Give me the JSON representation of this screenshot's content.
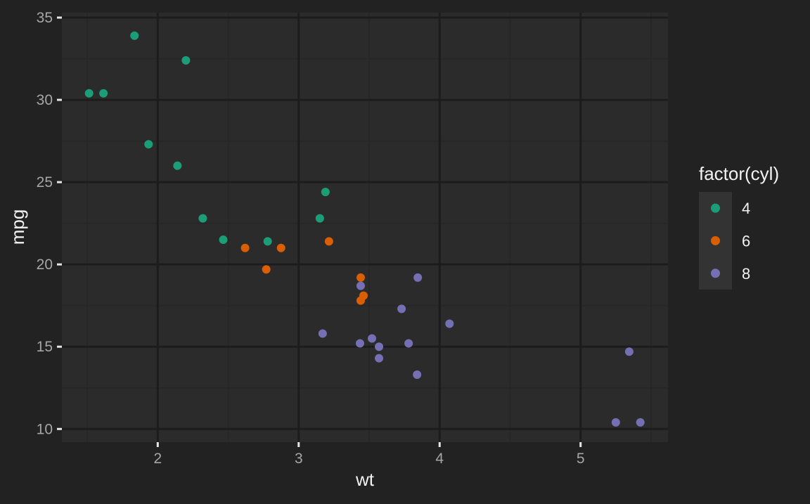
{
  "chart_data": {
    "type": "scatter",
    "title": "",
    "xlabel": "wt",
    "ylabel": "mpg",
    "xlim": [
      1.32,
      5.62
    ],
    "ylim": [
      9.2,
      35.3
    ],
    "x_ticks": [
      2,
      3,
      4,
      5
    ],
    "x_tick_labels": [
      "2",
      "3",
      "4",
      "5"
    ],
    "y_ticks": [
      10,
      15,
      20,
      25,
      30,
      35
    ],
    "y_tick_labels": [
      "10",
      "15",
      "20",
      "25",
      "30",
      "35"
    ],
    "grid": true,
    "legend": {
      "title": "factor(cyl)",
      "position": "right",
      "entries": [
        "4",
        "6",
        "8"
      ]
    },
    "series": [
      {
        "name": "4",
        "color": "#1B9E77",
        "points": [
          {
            "x": 2.32,
            "y": 22.8
          },
          {
            "x": 3.19,
            "y": 24.4
          },
          {
            "x": 3.15,
            "y": 22.8
          },
          {
            "x": 2.2,
            "y": 32.4
          },
          {
            "x": 1.615,
            "y": 30.4
          },
          {
            "x": 1.835,
            "y": 33.9
          },
          {
            "x": 2.465,
            "y": 21.5
          },
          {
            "x": 1.935,
            "y": 27.3
          },
          {
            "x": 2.14,
            "y": 26.0
          },
          {
            "x": 1.513,
            "y": 30.4
          },
          {
            "x": 2.78,
            "y": 21.4
          }
        ]
      },
      {
        "name": "6",
        "color": "#D95F02",
        "points": [
          {
            "x": 2.62,
            "y": 21.0
          },
          {
            "x": 2.875,
            "y": 21.0
          },
          {
            "x": 3.215,
            "y": 21.4
          },
          {
            "x": 3.46,
            "y": 18.1
          },
          {
            "x": 3.44,
            "y": 19.2
          },
          {
            "x": 3.44,
            "y": 17.8
          },
          {
            "x": 2.77,
            "y": 19.7
          }
        ]
      },
      {
        "name": "8",
        "color": "#7570B3",
        "points": [
          {
            "x": 3.44,
            "y": 18.7
          },
          {
            "x": 3.57,
            "y": 14.3
          },
          {
            "x": 4.07,
            "y": 16.4
          },
          {
            "x": 3.73,
            "y": 17.3
          },
          {
            "x": 3.78,
            "y": 15.2
          },
          {
            "x": 5.25,
            "y": 10.4
          },
          {
            "x": 5.424,
            "y": 10.4
          },
          {
            "x": 5.345,
            "y": 14.7
          },
          {
            "x": 3.52,
            "y": 15.5
          },
          {
            "x": 3.435,
            "y": 15.2
          },
          {
            "x": 3.84,
            "y": 13.3
          },
          {
            "x": 3.845,
            "y": 19.2
          },
          {
            "x": 3.17,
            "y": 15.8
          },
          {
            "x": 3.57,
            "y": 15.0
          }
        ]
      }
    ]
  },
  "colors": {
    "background": "#222222",
    "panel": "#2B2B2B",
    "grid_major": "#1C1C1C",
    "grid_minor": "#262626",
    "axis_text": "#A6A6A6",
    "title_text": "#F2F2F2",
    "legend_key_bg": "#333333"
  }
}
